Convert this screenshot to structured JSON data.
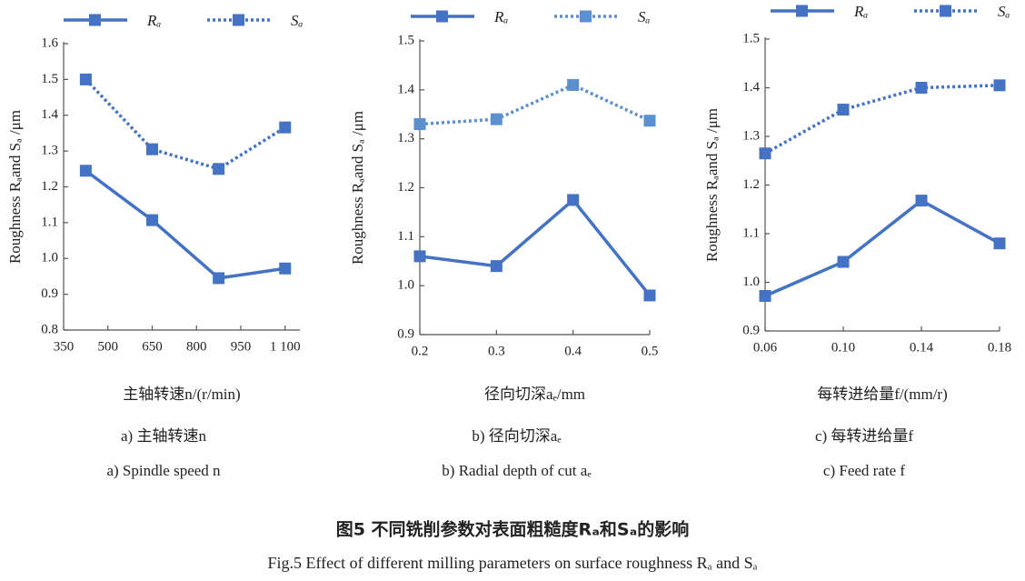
{
  "chart_data": [
    {
      "type": "line",
      "y_label": "Roughness Rₐand Sₐ /μm",
      "x_label": "主轴转速n/(r/min)",
      "subcaption_cn": "a) 主轴转速n",
      "subcaption_en": "a) Spindle speed n",
      "x": [
        425,
        650,
        875,
        1100
      ],
      "xlim": [
        350,
        1150
      ],
      "xticks": [
        350,
        500,
        650,
        800,
        950,
        {
          "value": 1100,
          "label": "1 100"
        }
      ],
      "ylim": [
        0.8,
        1.6
      ],
      "yticks": [
        0.8,
        0.9,
        {
          "value": 1,
          "label": "1.0"
        },
        1.1,
        1.2,
        1.3,
        1.4,
        1.5,
        1.6
      ],
      "series": [
        {
          "name": "Rₐ",
          "color": "#4472c4",
          "line_style": "solid",
          "values": [
            1.245,
            1.107,
            0.945,
            0.972
          ]
        },
        {
          "name": "Sₐ",
          "color": "#4472c4",
          "line_style": "dotted",
          "values": [
            1.5,
            1.305,
            1.25,
            1.366
          ]
        }
      ]
    },
    {
      "type": "line",
      "y_label": "Roughness Rₐand Sₐ /μm",
      "x_label": "径向切深aₑ/mm",
      "subcaption_cn": "b) 径向切深aₑ",
      "subcaption_en": "b) Radial depth of cut aₑ",
      "x": [
        0.2,
        0.3,
        0.4,
        0.5
      ],
      "xlim": [
        0.2,
        0.5
      ],
      "xticks": [
        0.2,
        0.3,
        0.4,
        0.5
      ],
      "ylim": [
        0.9,
        1.5
      ],
      "yticks": [
        0.9,
        {
          "value": 1,
          "label": "1.0"
        },
        1.1,
        1.2,
        1.3,
        1.4,
        1.5
      ],
      "series": [
        {
          "name": "Rₐ",
          "color": "#4472c4",
          "line_style": "solid",
          "values": [
            1.06,
            1.04,
            1.175,
            0.98
          ]
        },
        {
          "name": "Sₐ",
          "color": "#5b8fd0",
          "line_style": "dotted",
          "values": [
            1.33,
            1.34,
            1.41,
            1.337
          ]
        }
      ]
    },
    {
      "type": "line",
      "y_label": "Roughness Rₐand Sₐ /μm",
      "x_label": "每转进给量f/(mm/r)",
      "subcaption_cn": "c) 每转进给量f",
      "subcaption_en": "c) Feed rate f",
      "x": [
        0.06,
        0.1,
        0.14,
        0.18
      ],
      "xlim": [
        0.06,
        0.18
      ],
      "xticks": [
        0.06,
        {
          "value": 0.1,
          "label": "0.10"
        },
        0.14,
        0.18
      ],
      "ylim": [
        0.9,
        1.5
      ],
      "yticks": [
        0.9,
        {
          "value": 1,
          "label": "1.0"
        },
        1.1,
        1.2,
        1.3,
        1.4,
        1.5
      ],
      "series": [
        {
          "name": "Rₐ",
          "color": "#4472c4",
          "line_style": "solid",
          "values": [
            0.972,
            1.042,
            1.168,
            1.08
          ]
        },
        {
          "name": "Sₐ",
          "color": "#4472c4",
          "line_style": "dotted",
          "values": [
            1.265,
            1.355,
            1.4,
            1.405
          ]
        }
      ]
    }
  ],
  "figure": {
    "caption_cn": "图5 不同铣削参数对表面粗糙度Rₐ和Sₐ的影响",
    "caption_en": "Fig.5 Effect of different milling parameters on surface roughness Rₐ and Sₐ"
  }
}
